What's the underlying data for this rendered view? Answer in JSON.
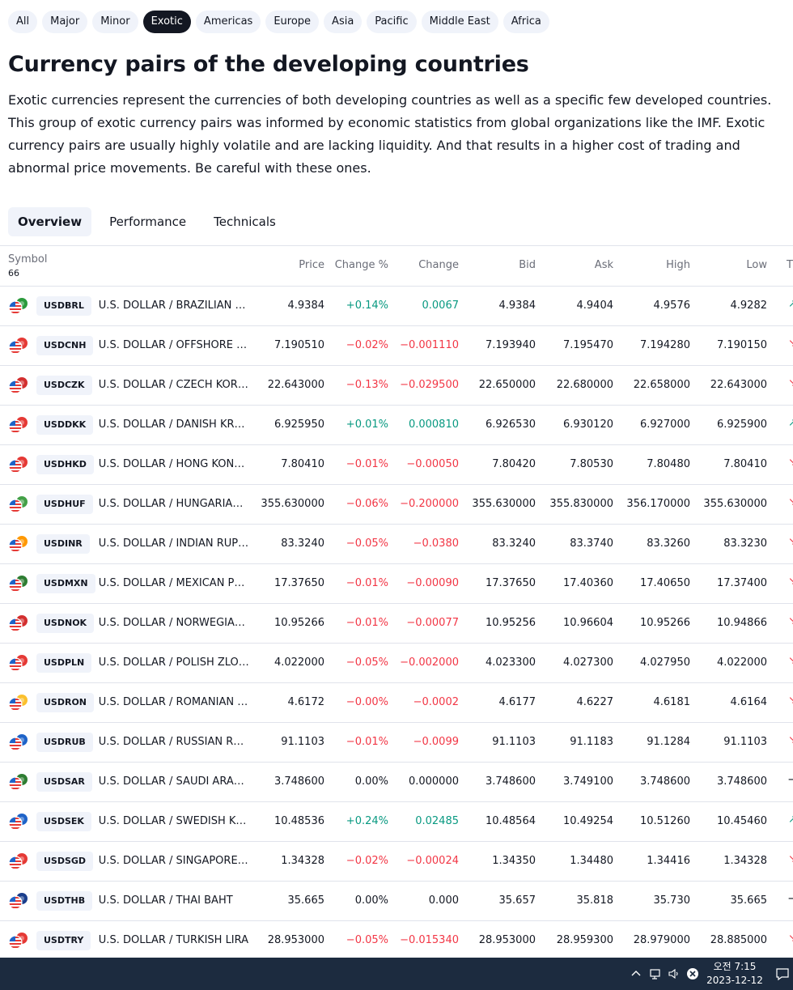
{
  "filters": [
    "All",
    "Major",
    "Minor",
    "Exotic",
    "Americas",
    "Europe",
    "Asia",
    "Pacific",
    "Middle East",
    "Africa"
  ],
  "active_filter": "Exotic",
  "page": {
    "title": "Currency pairs of the developing countries",
    "description": "Exotic currencies represent the currencies of both developing countries as well as a specific few developed countries. This group of exotic currency pairs was informed by economic statistics from global organizations like the IMF. Exotic currency pairs are usually highly volatile and are lacking liquidity. And that results in a higher cost of trading and abnormal price movements. Be careful with these ones."
  },
  "tabs": [
    "Overview",
    "Performance",
    "Technicals"
  ],
  "active_tab": "Overview",
  "table": {
    "symbol_header": "Symbol",
    "symbol_count": "66",
    "columns": [
      "Price",
      "Change %",
      "Change",
      "Bid",
      "Ask",
      "High",
      "Low"
    ],
    "truncated_column": "T",
    "rows": [
      {
        "ticker": "USDBRL",
        "name": "U.S. DOLLAR / BRAZILIAN R...",
        "price": "4.9384",
        "change_pct": "+0.14%",
        "change": "0.0067",
        "bid": "4.9384",
        "ask": "4.9404",
        "high": "4.9576",
        "low": "4.9282",
        "dir": "pos",
        "flag_color": "#2b9a3c"
      },
      {
        "ticker": "USDCNH",
        "name": "U.S. DOLLAR / OFFSHORE C...",
        "price": "7.190510",
        "change_pct": "−0.02%",
        "change": "−0.001110",
        "bid": "7.193940",
        "ask": "7.195470",
        "high": "7.194280",
        "low": "7.190150",
        "dir": "neg",
        "flag_color": "#e53935"
      },
      {
        "ticker": "USDCZK",
        "name": "U.S. DOLLAR / CZECH KORU...",
        "price": "22.643000",
        "change_pct": "−0.13%",
        "change": "−0.029500",
        "bid": "22.650000",
        "ask": "22.680000",
        "high": "22.658000",
        "low": "22.643000",
        "dir": "neg",
        "flag_color": "#d32f2f"
      },
      {
        "ticker": "USDDKK",
        "name": "U.S. DOLLAR / DANISH KRONE",
        "price": "6.925950",
        "change_pct": "+0.01%",
        "change": "0.000810",
        "bid": "6.926530",
        "ask": "6.930120",
        "high": "6.927000",
        "low": "6.925900",
        "dir": "pos",
        "flag_color": "#e53935"
      },
      {
        "ticker": "USDHKD",
        "name": "U.S. DOLLAR / HONG KONG ...",
        "price": "7.80410",
        "change_pct": "−0.01%",
        "change": "−0.00050",
        "bid": "7.80420",
        "ask": "7.80530",
        "high": "7.80480",
        "low": "7.80410",
        "dir": "neg",
        "flag_color": "#e53935"
      },
      {
        "ticker": "USDHUF",
        "name": "U.S. DOLLAR / HUNGARIAN ...",
        "price": "355.630000",
        "change_pct": "−0.06%",
        "change": "−0.200000",
        "bid": "355.630000",
        "ask": "355.830000",
        "high": "356.170000",
        "low": "355.630000",
        "dir": "neg",
        "flag_color": "#43a047"
      },
      {
        "ticker": "USDINR",
        "name": "U.S. DOLLAR / INDIAN RUPEE",
        "price": "83.3240",
        "change_pct": "−0.05%",
        "change": "−0.0380",
        "bid": "83.3240",
        "ask": "83.3740",
        "high": "83.3260",
        "low": "83.3230",
        "dir": "neg",
        "flag_color": "#ff9800"
      },
      {
        "ticker": "USDMXN",
        "name": "U.S. DOLLAR / MEXICAN PESO",
        "price": "17.37650",
        "change_pct": "−0.01%",
        "change": "−0.00090",
        "bid": "17.37650",
        "ask": "17.40360",
        "high": "17.40650",
        "low": "17.37400",
        "dir": "neg",
        "flag_color": "#2e7d32"
      },
      {
        "ticker": "USDNOK",
        "name": "U.S. DOLLAR / NORWEGIAN ...",
        "price": "10.95266",
        "change_pct": "−0.01%",
        "change": "−0.00077",
        "bid": "10.95256",
        "ask": "10.96604",
        "high": "10.95266",
        "low": "10.94866",
        "dir": "neg",
        "flag_color": "#d32f2f"
      },
      {
        "ticker": "USDPLN",
        "name": "U.S. DOLLAR / POLISH ZLOTY",
        "price": "4.022000",
        "change_pct": "−0.05%",
        "change": "−0.002000",
        "bid": "4.023300",
        "ask": "4.027300",
        "high": "4.027950",
        "low": "4.022000",
        "dir": "neg",
        "flag_color": "#e53935"
      },
      {
        "ticker": "USDRON",
        "name": "U.S. DOLLAR / ROMANIAN L...",
        "price": "4.6172",
        "change_pct": "−0.00%",
        "change": "−0.0002",
        "bid": "4.6177",
        "ask": "4.6227",
        "high": "4.6181",
        "low": "4.6164",
        "dir": "neg",
        "flag_color": "#fbc02d"
      },
      {
        "ticker": "USDRUB",
        "name": "U.S. DOLLAR / RUSSIAN RUB...",
        "price": "91.1103",
        "change_pct": "−0.01%",
        "change": "−0.0099",
        "bid": "91.1103",
        "ask": "91.1183",
        "high": "91.1284",
        "low": "91.1103",
        "dir": "neg",
        "flag_color": "#1e63c8"
      },
      {
        "ticker": "USDSAR",
        "name": "U.S. DOLLAR / SAUDI ARABI...",
        "price": "3.748600",
        "change_pct": "0.00%",
        "change": "0.000000",
        "bid": "3.748600",
        "ask": "3.749100",
        "high": "3.748600",
        "low": "3.748600",
        "dir": "neu",
        "flag_color": "#2e7d32"
      },
      {
        "ticker": "USDSEK",
        "name": "U.S. DOLLAR / SWEDISH KRO...",
        "price": "10.48536",
        "change_pct": "+0.24%",
        "change": "0.02485",
        "bid": "10.48564",
        "ask": "10.49254",
        "high": "10.51260",
        "low": "10.45460",
        "dir": "pos",
        "flag_color": "#1e63c8"
      },
      {
        "ticker": "USDSGD",
        "name": "U.S. DOLLAR / SINGAPORE D...",
        "price": "1.34328",
        "change_pct": "−0.02%",
        "change": "−0.00024",
        "bid": "1.34350",
        "ask": "1.34480",
        "high": "1.34416",
        "low": "1.34328",
        "dir": "neg",
        "flag_color": "#e53935"
      },
      {
        "ticker": "USDTHB",
        "name": "U.S. DOLLAR / THAI BAHT",
        "price": "35.665",
        "change_pct": "0.00%",
        "change": "0.000",
        "bid": "35.657",
        "ask": "35.818",
        "high": "35.730",
        "low": "35.665",
        "dir": "neu",
        "flag_color": "#1a3e8c"
      },
      {
        "ticker": "USDTRY",
        "name": "U.S. DOLLAR / TURKISH LIRA",
        "price": "28.953000",
        "change_pct": "−0.05%",
        "change": "−0.015340",
        "bid": "28.953000",
        "ask": "28.959300",
        "high": "28.979000",
        "low": "28.885000",
        "dir": "neg",
        "flag_color": "#e53935"
      }
    ]
  },
  "taskbar": {
    "time": "오전 7:15",
    "date": "2023-12-12"
  },
  "colors": {
    "positive": "#089981",
    "negative": "#f23645",
    "chip_active": "#131722",
    "taskbar": "#1c2b3f"
  }
}
